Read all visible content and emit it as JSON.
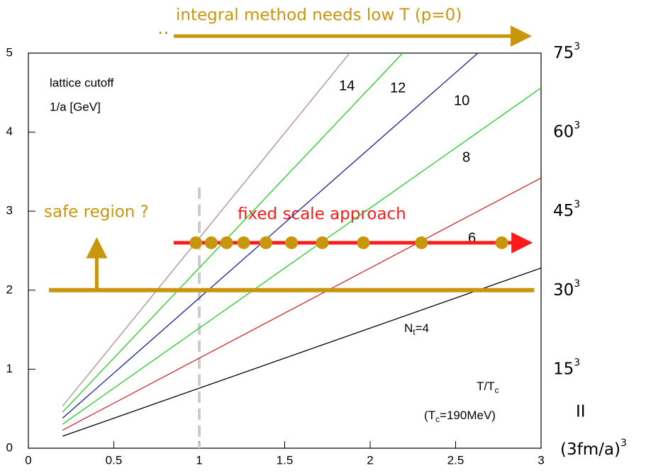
{
  "chart_data": {
    "type": "line",
    "annotations": {
      "cutoff_title": "lattice cutoff",
      "cutoff_unit": "1/a [GeV]",
      "x_label": {
        "main": "T/T",
        "sub": "c"
      },
      "x_note": {
        "open": "(T",
        "sub": "c",
        "rest": "=190MeV)"
      },
      "top_arrow": "integral method needs low T (p=0)",
      "safe_region": "safe region ?",
      "fixed_scale": "fixed scale approach",
      "y2_equals": "II",
      "y2_unit": "(3fm/a)",
      "y2_exponent": "3"
    },
    "xlim": [
      0,
      3
    ],
    "ylim": [
      0,
      5
    ],
    "xticks": [
      0,
      0.5,
      1,
      1.5,
      2,
      2.5,
      3
    ],
    "yticks": [
      0,
      1,
      2,
      3,
      4,
      5
    ],
    "y2lim": [
      0,
      75
    ],
    "y2ticks": [
      15,
      30,
      45,
      60,
      75
    ],
    "tc_line": 1,
    "safe_threshold": 2,
    "series": [
      {
        "name": {
          "main": "N",
          "sub": "t",
          "rest": "=4"
        },
        "color": "#000000",
        "x": [
          0.2,
          3
        ],
        "values": [
          0.152,
          2.28
        ]
      },
      {
        "name": "6",
        "color": "#cc2a2a",
        "x": [
          0.2,
          3
        ],
        "values": [
          0.228,
          3.42
        ]
      },
      {
        "name": "8",
        "color": "#22cc22",
        "x": [
          0.2,
          3
        ],
        "values": [
          0.304,
          4.56
        ]
      },
      {
        "name": "10",
        "color": "#1a1a8c",
        "x": [
          0.2,
          2.63
        ],
        "values": [
          0.38,
          5
        ]
      },
      {
        "name": "12",
        "color": "#22cc22",
        "x": [
          0.2,
          2.19
        ],
        "values": [
          0.456,
          5
        ]
      },
      {
        "name": "14",
        "color": "#b08a8a",
        "x": [
          0.2,
          1.88
        ],
        "values": [
          0.532,
          5
        ]
      }
    ],
    "fixed_points": {
      "color": "#c8960c",
      "x": [
        0.98,
        1.07,
        1.16,
        1.26,
        1.39,
        1.54,
        1.72,
        1.96,
        2.3,
        2.77
      ],
      "values": [
        2.6,
        2.6,
        2.6,
        2.6,
        2.6,
        2.6,
        2.6,
        2.6,
        2.6,
        2.6
      ]
    }
  }
}
